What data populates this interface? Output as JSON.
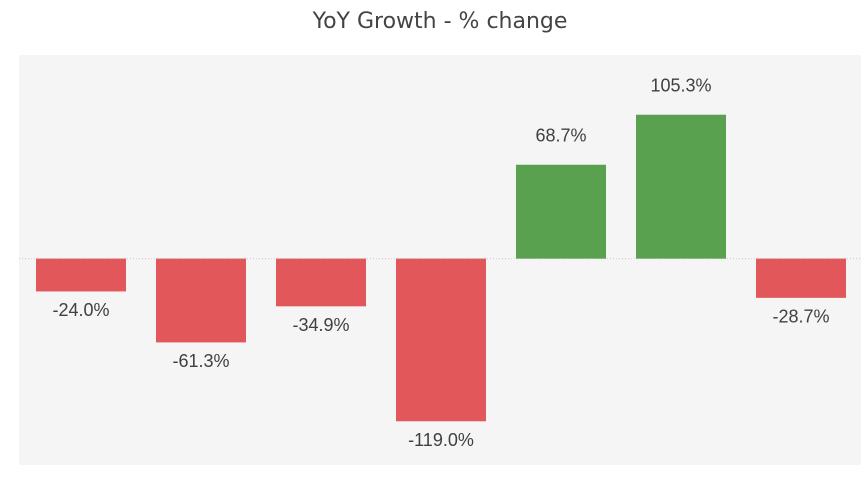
{
  "chart_data": {
    "type": "bar",
    "title": "YoY Growth - % change",
    "values": [
      -24.0,
      -61.3,
      -34.9,
      -119.0,
      68.7,
      105.3,
      -28.7
    ],
    "value_labels": [
      "-24.0%",
      "-61.3%",
      "-34.9%",
      "-119.0%",
      "68.7%",
      "105.3%",
      "-28.7%"
    ],
    "positive_color": "#59a14f",
    "negative_color": "#e1575a",
    "ylim": [
      -151,
      149
    ]
  }
}
